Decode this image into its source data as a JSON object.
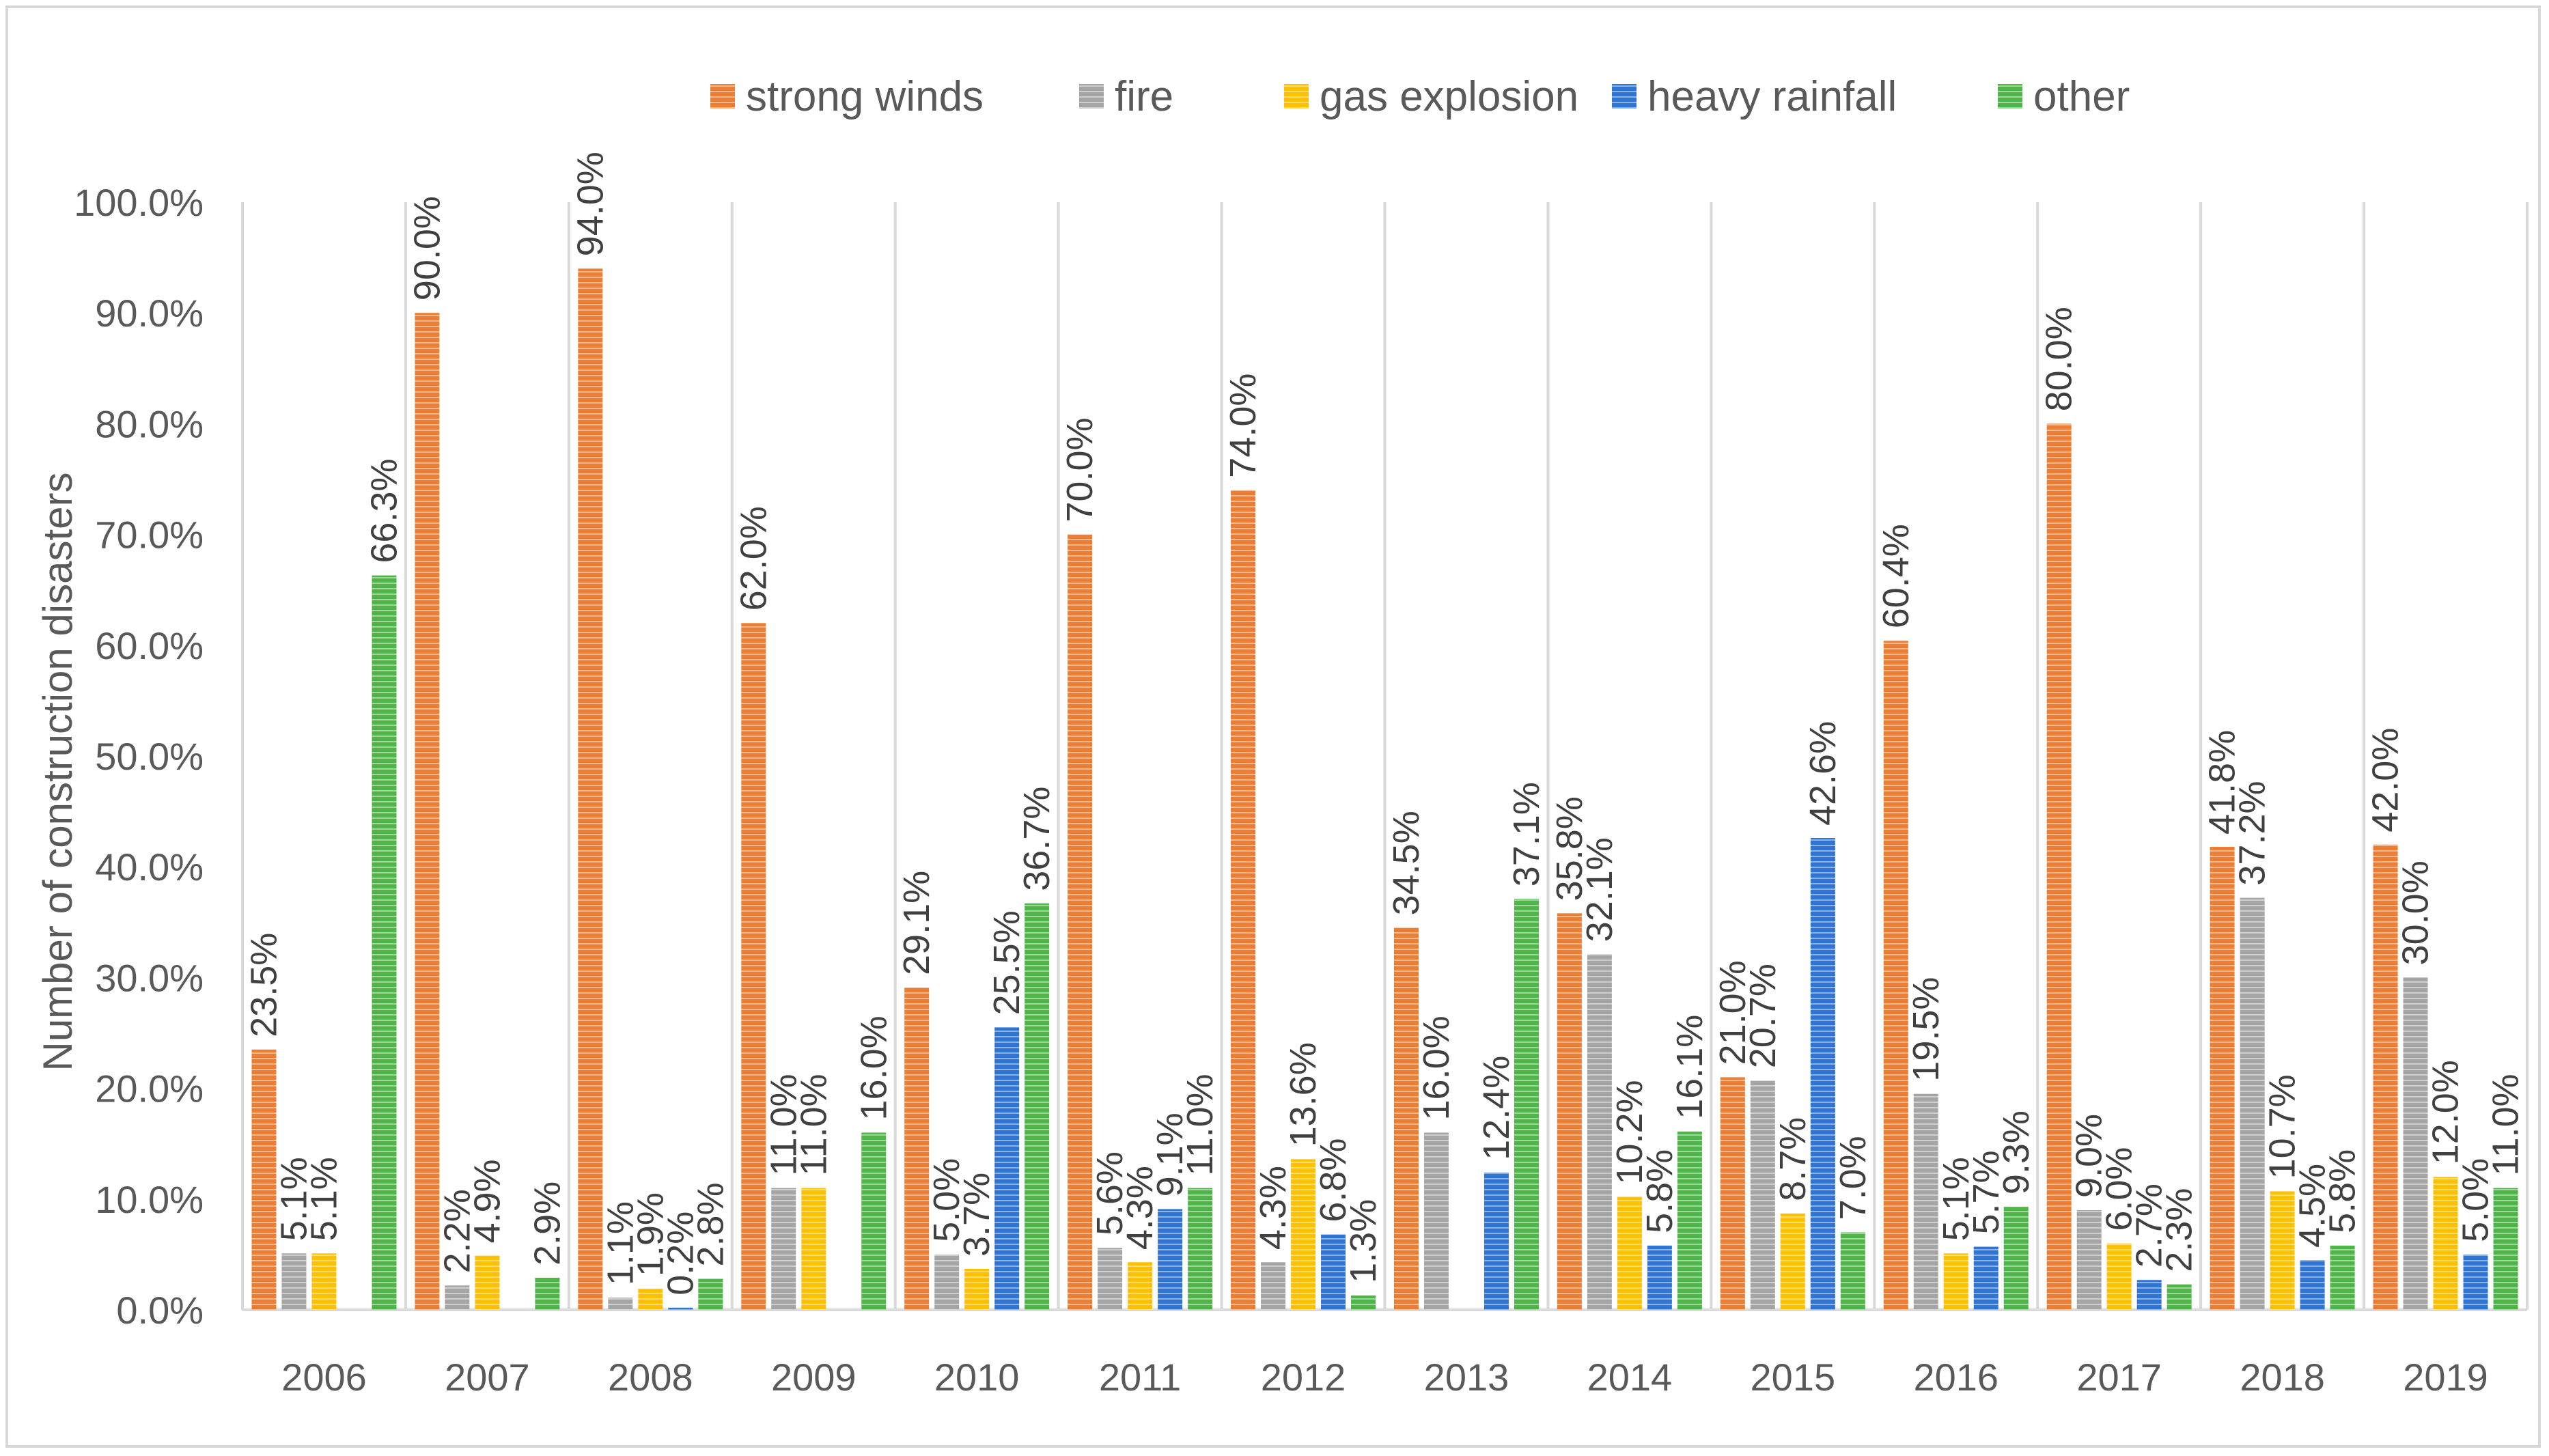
{
  "chart_data": {
    "type": "bar",
    "title": "",
    "xlabel": "",
    "ylabel": "Number of construction disasters",
    "ylim": [
      0,
      100
    ],
    "ytick_step": 10,
    "ytick_labels": [
      "0.0%",
      "10.0%",
      "20.0%",
      "30.0%",
      "40.0%",
      "50.0%",
      "60.0%",
      "70.0%",
      "80.0%",
      "90.0%",
      "100.0%"
    ],
    "legend_position": "top",
    "categories": [
      "2006",
      "2007",
      "2008",
      "2009",
      "2010",
      "2011",
      "2012",
      "2013",
      "2014",
      "2015",
      "2016",
      "2017",
      "2018",
      "2019"
    ],
    "series": [
      {
        "name": "strong winds",
        "color": "#ed7d31",
        "values": [
          23.5,
          90.0,
          94.0,
          62.0,
          29.1,
          70.0,
          74.0,
          34.5,
          35.8,
          21.0,
          60.4,
          80.0,
          41.8,
          42.0
        ],
        "labels": [
          "23.5%",
          "90.0%",
          "94.0%",
          "62.0%",
          "29.1%",
          "70.0%",
          "74.0%",
          "34.5%",
          "35.8%",
          "21.0%",
          "60.4%",
          "80.0%",
          "41.8%",
          "42.0%"
        ]
      },
      {
        "name": "fire",
        "color": "#a5a5a5",
        "values": [
          5.1,
          2.2,
          1.1,
          11.0,
          5.0,
          5.6,
          4.3,
          16.0,
          32.1,
          20.7,
          19.5,
          9.0,
          37.2,
          30.0
        ],
        "labels": [
          "5.1%",
          "2.2%",
          "1.1%",
          "11.0%",
          "5.0%",
          "5.6%",
          "4.3%",
          "16.0%",
          "32.1%",
          "20.7%",
          "19.5%",
          "9.0%",
          "37.2%",
          "30.0%"
        ]
      },
      {
        "name": "gas explosion",
        "color": "#ffc000",
        "values": [
          5.1,
          4.9,
          1.9,
          11.0,
          3.7,
          4.3,
          13.6,
          null,
          10.2,
          8.7,
          5.1,
          6.0,
          10.7,
          12.0
        ],
        "labels": [
          "5.1%",
          "4.9%",
          "1.9%",
          "11.0%",
          "3.7%",
          "4.3%",
          "13.6%",
          "",
          "10.2%",
          "8.7%",
          "5.1%",
          "6.0%",
          "10.7%",
          "12.0%"
        ]
      },
      {
        "name": "heavy rainfall",
        "color": "#2e75d6",
        "values": [
          null,
          null,
          0.2,
          null,
          25.5,
          9.1,
          6.8,
          12.4,
          5.8,
          42.6,
          5.7,
          2.7,
          4.5,
          5.0
        ],
        "labels": [
          "",
          "",
          "0.2%",
          "",
          "25.5%",
          "9.1%",
          "6.8%",
          "12.4%",
          "5.8%",
          "42.6%",
          "5.7%",
          "2.7%",
          "4.5%",
          "5.0%"
        ]
      },
      {
        "name": "other",
        "color": "#4eb548",
        "values": [
          66.3,
          2.9,
          2.8,
          16.0,
          36.7,
          11.0,
          1.3,
          37.1,
          16.1,
          7.0,
          9.3,
          2.3,
          5.8,
          11.0
        ],
        "labels": [
          "66.3%",
          "2.9%",
          "2.8%",
          "16.0%",
          "36.7%",
          "11.0%",
          "1.3%",
          "37.1%",
          "16.1%",
          "7.0%",
          "9.3%",
          "2.3%",
          "5.8%",
          "11.0%"
        ]
      }
    ]
  }
}
